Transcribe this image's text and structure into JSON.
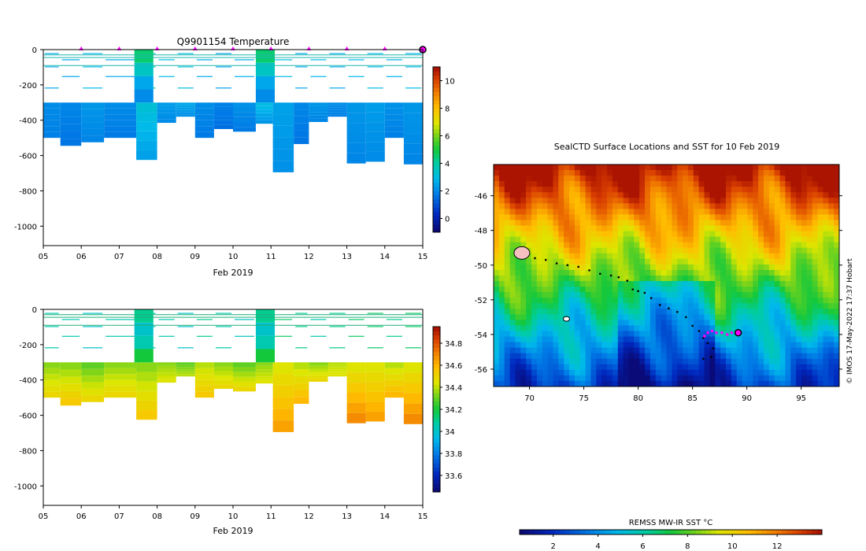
{
  "chart_data": [
    {
      "id": "temperature",
      "type": "heatmap",
      "title": "Q9901154  Temperature",
      "xlabel": "Feb 2019",
      "x_ticks": [
        "05",
        "06",
        "07",
        "08",
        "09",
        "10",
        "11",
        "12",
        "13",
        "14",
        "15"
      ],
      "x_range_days": [
        5,
        15
      ],
      "y_ticks": [
        0,
        -200,
        -400,
        -600,
        -800,
        -1000
      ],
      "ylim": [
        -1110,
        0
      ],
      "colorbar": {
        "ticks": [
          0,
          2,
          4,
          6,
          8,
          10
        ],
        "range": [
          -1,
          11
        ]
      },
      "surfacing_markers_day": [
        6,
        7,
        8,
        9,
        10,
        11,
        12,
        13,
        14
      ],
      "profiles": [
        {
          "t": 5.0,
          "max_depth": 500,
          "shallow": 2.0,
          "deep": 1.8
        },
        {
          "t": 5.45,
          "max_depth": 545,
          "shallow": 1.9,
          "deep": 1.6
        },
        {
          "t": 6.0,
          "max_depth": 525,
          "shallow": 2.2,
          "deep": 1.9
        },
        {
          "t": 6.6,
          "max_depth": 500,
          "shallow": 2.0,
          "deep": 1.7
        },
        {
          "t": 7.45,
          "max_depth": 625,
          "shallow": 3.2,
          "deep": 2.4
        },
        {
          "t": 8.0,
          "max_depth": 415,
          "shallow": 2.3,
          "deep": 2.0
        },
        {
          "t": 8.5,
          "max_depth": 380,
          "shallow": 2.5,
          "deep": 2.1
        },
        {
          "t": 9.0,
          "max_depth": 500,
          "shallow": 2.0,
          "deep": 1.7
        },
        {
          "t": 9.5,
          "max_depth": 450,
          "shallow": 1.8,
          "deep": 1.5
        },
        {
          "t": 10.0,
          "max_depth": 465,
          "shallow": 2.1,
          "deep": 1.7
        },
        {
          "t": 10.6,
          "max_depth": 420,
          "shallow": 3.0,
          "deep": 2.2
        },
        {
          "t": 11.05,
          "max_depth": 695,
          "shallow": 2.4,
          "deep": 2.1
        },
        {
          "t": 11.6,
          "max_depth": 535,
          "shallow": 1.9,
          "deep": 1.6
        },
        {
          "t": 12.0,
          "max_depth": 410,
          "shallow": 2.2,
          "deep": 1.9
        },
        {
          "t": 12.5,
          "max_depth": 380,
          "shallow": 2.0,
          "deep": 1.8
        },
        {
          "t": 13.0,
          "max_depth": 645,
          "shallow": 2.2,
          "deep": 1.9
        },
        {
          "t": 13.5,
          "max_depth": 635,
          "shallow": 2.3,
          "deep": 2.0
        },
        {
          "t": 14.0,
          "max_depth": 500,
          "shallow": 2.1,
          "deep": 1.8
        },
        {
          "t": 14.5,
          "max_depth": 650,
          "shallow": 2.2,
          "deep": 1.9
        }
      ]
    },
    {
      "id": "salinity",
      "type": "heatmap",
      "title": "",
      "xlabel": "Feb 2019",
      "x_ticks": [
        "05",
        "06",
        "07",
        "08",
        "09",
        "10",
        "11",
        "12",
        "13",
        "14",
        "15"
      ],
      "x_range_days": [
        5,
        15
      ],
      "y_ticks": [
        0,
        -200,
        -400,
        -600,
        -800,
        -1000
      ],
      "ylim": [
        -1110,
        0
      ],
      "colorbar": {
        "ticks": [
          33.6,
          33.8,
          34,
          34.2,
          34.4,
          34.6,
          34.8
        ],
        "range": [
          33.45,
          34.95
        ]
      },
      "profiles": [
        {
          "t": 5.0,
          "max_depth": 500,
          "shallow": 34.35,
          "deep": 34.5
        },
        {
          "t": 5.45,
          "max_depth": 545,
          "shallow": 34.35,
          "deep": 34.55
        },
        {
          "t": 6.0,
          "max_depth": 525,
          "shallow": 34.3,
          "deep": 34.5
        },
        {
          "t": 6.6,
          "max_depth": 500,
          "shallow": 34.35,
          "deep": 34.5
        },
        {
          "t": 7.45,
          "max_depth": 625,
          "shallow": 34.35,
          "deep": 34.55
        },
        {
          "t": 8.0,
          "max_depth": 415,
          "shallow": 34.35,
          "deep": 34.45
        },
        {
          "t": 8.5,
          "max_depth": 380,
          "shallow": 34.3,
          "deep": 34.4
        },
        {
          "t": 9.0,
          "max_depth": 500,
          "shallow": 34.4,
          "deep": 34.55
        },
        {
          "t": 9.5,
          "max_depth": 450,
          "shallow": 34.35,
          "deep": 34.5
        },
        {
          "t": 10.0,
          "max_depth": 465,
          "shallow": 34.3,
          "deep": 34.5
        },
        {
          "t": 10.6,
          "max_depth": 420,
          "shallow": 34.35,
          "deep": 34.45
        },
        {
          "t": 11.05,
          "max_depth": 695,
          "shallow": 34.45,
          "deep": 34.65
        },
        {
          "t": 11.6,
          "max_depth": 535,
          "shallow": 34.4,
          "deep": 34.6
        },
        {
          "t": 12.0,
          "max_depth": 410,
          "shallow": 34.35,
          "deep": 34.5
        },
        {
          "t": 12.5,
          "max_depth": 380,
          "shallow": 34.4,
          "deep": 34.45
        },
        {
          "t": 13.0,
          "max_depth": 645,
          "shallow": 34.45,
          "deep": 34.7
        },
        {
          "t": 13.5,
          "max_depth": 635,
          "shallow": 34.45,
          "deep": 34.65
        },
        {
          "t": 14.0,
          "max_depth": 500,
          "shallow": 34.4,
          "deep": 34.6
        },
        {
          "t": 14.5,
          "max_depth": 650,
          "shallow": 34.45,
          "deep": 34.7
        }
      ]
    },
    {
      "id": "sst-map",
      "type": "heatmap",
      "title": "SealCTD Surface Locations and SST for 10 Feb 2019",
      "x_ticks": [
        70,
        75,
        80,
        85,
        90,
        95
      ],
      "y_ticks": [
        -46,
        -48,
        -50,
        -52,
        -54,
        -56
      ],
      "xlim": [
        66.7,
        98.5
      ],
      "ylim": [
        -57,
        -44.2
      ],
      "colorbar_label": "REMSS MW-IR SST °C",
      "colorbar_ticks": [
        2,
        4,
        6,
        8,
        10,
        12
      ],
      "colorbar_range": [
        0.5,
        14
      ],
      "credit": "© IMOS 17-May-2022 17:37 Hobart",
      "track": [
        [
          70.5,
          -49.6
        ],
        [
          71.5,
          -49.7
        ],
        [
          72.5,
          -49.9
        ],
        [
          73.5,
          -50.0
        ],
        [
          74.5,
          -50.1
        ],
        [
          75.5,
          -50.3
        ],
        [
          76.5,
          -50.5
        ],
        [
          77.5,
          -50.6
        ],
        [
          78.2,
          -50.7
        ],
        [
          79.0,
          -50.9
        ],
        [
          79.5,
          -51.4
        ],
        [
          80.0,
          -51.5
        ],
        [
          80.6,
          -51.6
        ],
        [
          81.2,
          -51.9
        ],
        [
          82.0,
          -52.3
        ],
        [
          82.8,
          -52.5
        ],
        [
          83.6,
          -52.7
        ],
        [
          84.4,
          -53.0
        ],
        [
          85.0,
          -53.5
        ],
        [
          85.6,
          -53.8
        ],
        [
          86.0,
          -54.2
        ],
        [
          86.4,
          -54.5
        ],
        [
          86.9,
          -54.8
        ],
        [
          86.7,
          -55.3
        ],
        [
          86.0,
          -55.4
        ]
      ],
      "recent_track": [
        [
          86.1,
          -54.1
        ],
        [
          86.4,
          -53.9
        ],
        [
          86.8,
          -53.8
        ],
        [
          87.2,
          -53.9
        ],
        [
          87.7,
          -53.9
        ],
        [
          88.2,
          -54.0
        ],
        [
          88.6,
          -53.9
        ],
        [
          89.2,
          -53.9
        ]
      ],
      "current_position": [
        89.2,
        -53.9
      ]
    }
  ]
}
